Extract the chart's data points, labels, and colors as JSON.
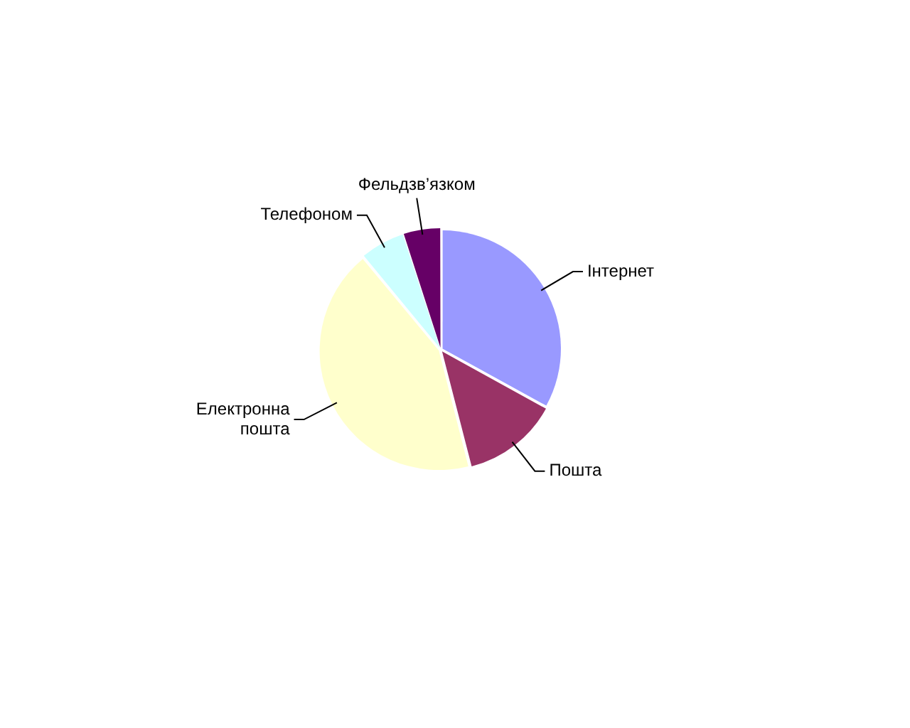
{
  "chart_data": {
    "type": "pie",
    "categories": [
      "Інтернет",
      "Пошта",
      "Електронна пошта",
      "Телефоном",
      "Фельдзв’язком"
    ],
    "values": [
      33,
      13,
      43,
      6,
      5
    ],
    "colors": [
      "#9999ff",
      "#993366",
      "#ffffcc",
      "#ccffff",
      "#660066"
    ]
  }
}
